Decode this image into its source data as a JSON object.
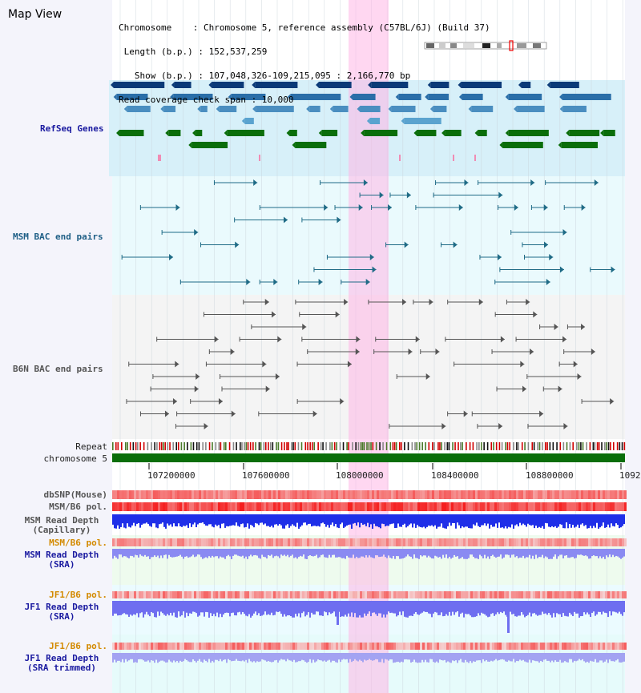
{
  "title": "Map View",
  "info": {
    "chromosome": "Chromosome    : Chromosome 5, reference assembly (C57BL/6J) (Build 37)",
    "length": " Length (b.p.) : 152,537,259",
    "show": "   Show (b.p.) : 107,048,326-109,215,095 : 2,166,770 bp",
    "span": "Read coverage check span : 10,000"
  },
  "tracks": {
    "refseq": "RefSeq Genes",
    "msm_bac": "MSM BAC end pairs",
    "b6n_bac": "B6N BAC end pairs",
    "repeat": "Repeat",
    "chromosome": "chromosome 5",
    "dbsnp": "dbSNP(Mouse)",
    "msm_b6_pol": "MSM/B6 pol.",
    "msm_depth_cap_1": "MSM Read Depth",
    "msm_depth_cap_2": "(Capillary)",
    "msm_b6_pol2": "MSM/B6 pol.",
    "msm_depth_sra_1": "MSM Read Depth",
    "msm_depth_sra_2": "(SRA)",
    "jf1_b6_pol": "JF1/B6 pol.",
    "jf1_depth_sra_1": "JF1 Read Depth",
    "jf1_depth_sra_2": "(SRA)",
    "jf1_b6_pol2": "JF1/B6 pol.",
    "jf1_depth_trim_1": "JF1 Read Depth",
    "jf1_depth_trim_2": "(SRA trimmed)"
  },
  "axis": {
    "ticks": [
      "107200000",
      "107600000",
      "108000000",
      "108400000",
      "108800000",
      "1092"
    ]
  },
  "colors": {
    "refseq_dark": "#0b3a78",
    "refseq_mid": "#4a8ec0",
    "refseq_green": "#0a6e0a",
    "msm_bac": "#1f6b86",
    "b6n_bac": "#555555",
    "highlight": "#ffb6e6",
    "chromosome": "#0a6e0a",
    "depth_blue": "#1f2fe8",
    "depth_light": "#8a8af2"
  }
}
